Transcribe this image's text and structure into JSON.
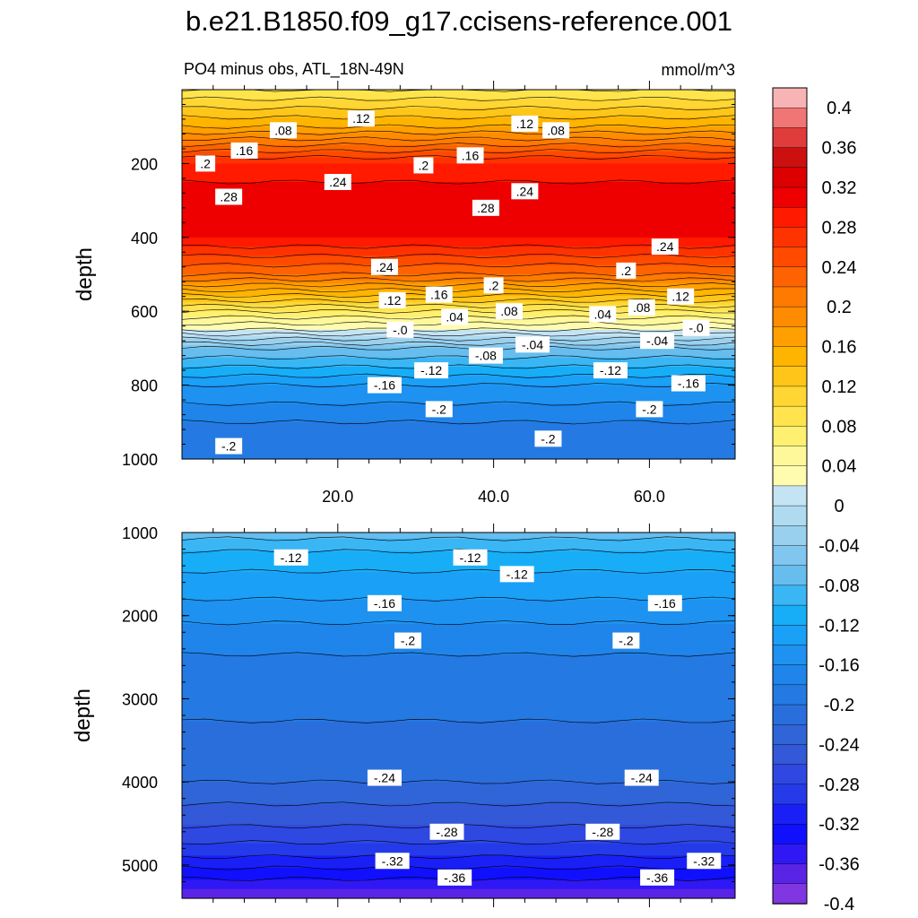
{
  "title": "b.e21.B1850.f09_g17.ccisens-reference.001",
  "chart_data": [
    {
      "type": "heatmap",
      "panel": "upper",
      "subtitle_left": "PO4 minus obs, ATL_18N-49N",
      "subtitle_right": "mmol/m^3",
      "ylabel": "depth",
      "ylim": [
        1000,
        0
      ],
      "xlim": [
        0,
        71
      ],
      "x_ticks": [
        "20.0",
        "40.0",
        "60.0"
      ],
      "x_tick_values": [
        20,
        40,
        60
      ],
      "y_ticks": [
        "200",
        "400",
        "600",
        "800",
        "1000"
      ],
      "y_tick_values": [
        200,
        400,
        600,
        800,
        1000
      ],
      "profile_depth": [
        0,
        100,
        200,
        300,
        400,
        500,
        600,
        650,
        700,
        800,
        900,
        1000
      ],
      "profile_value": [
        0.06,
        0.14,
        0.26,
        0.3,
        0.28,
        0.2,
        0.06,
        0.0,
        -0.08,
        -0.16,
        -0.2,
        -0.21
      ],
      "contour_labels": [
        {
          "text": ".08",
          "x": 13,
          "depth": 110
        },
        {
          "text": ".12",
          "x": 23,
          "depth": 78
        },
        {
          "text": ".08",
          "x": 48,
          "depth": 110
        },
        {
          "text": ".12",
          "x": 44,
          "depth": 92
        },
        {
          "text": ".16",
          "x": 8,
          "depth": 165
        },
        {
          "text": ".2",
          "x": 3,
          "depth": 200
        },
        {
          "text": ".2",
          "x": 31,
          "depth": 205
        },
        {
          "text": ".16",
          "x": 37,
          "depth": 178
        },
        {
          "text": ".24",
          "x": 20,
          "depth": 250
        },
        {
          "text": ".28",
          "x": 6,
          "depth": 290
        },
        {
          "text": ".24",
          "x": 44,
          "depth": 275
        },
        {
          "text": ".28",
          "x": 39,
          "depth": 320
        },
        {
          "text": ".24",
          "x": 26,
          "depth": 480
        },
        {
          "text": ".24",
          "x": 62,
          "depth": 425
        },
        {
          "text": ".2",
          "x": 57,
          "depth": 490
        },
        {
          "text": ".2",
          "x": 40,
          "depth": 530
        },
        {
          "text": ".16",
          "x": 33,
          "depth": 555
        },
        {
          "text": ".12",
          "x": 27,
          "depth": 570
        },
        {
          "text": ".12",
          "x": 64,
          "depth": 560
        },
        {
          "text": ".08",
          "x": 42,
          "depth": 600
        },
        {
          "text": ".08",
          "x": 59,
          "depth": 590
        },
        {
          "text": ".04",
          "x": 35,
          "depth": 615
        },
        {
          "text": ".04",
          "x": 54,
          "depth": 608
        },
        {
          "text": "-.0",
          "x": 28,
          "depth": 650
        },
        {
          "text": "-.0",
          "x": 66,
          "depth": 645
        },
        {
          "text": "-.04",
          "x": 45,
          "depth": 690
        },
        {
          "text": "-.04",
          "x": 61,
          "depth": 680
        },
        {
          "text": "-.08",
          "x": 39,
          "depth": 720
        },
        {
          "text": "-.12",
          "x": 32,
          "depth": 760
        },
        {
          "text": "-.12",
          "x": 55,
          "depth": 760
        },
        {
          "text": "-.16",
          "x": 26,
          "depth": 800
        },
        {
          "text": "-.16",
          "x": 65,
          "depth": 795
        },
        {
          "text": "-.2",
          "x": 33,
          "depth": 865
        },
        {
          "text": "-.2",
          "x": 60,
          "depth": 865
        },
        {
          "text": "-.2",
          "x": 6,
          "depth": 965
        },
        {
          "text": "-.2",
          "x": 47,
          "depth": 945
        }
      ]
    },
    {
      "type": "heatmap",
      "panel": "lower",
      "ylabel": "depth",
      "ylim": [
        5400,
        1000
      ],
      "xlim": [
        0,
        71
      ],
      "y_ticks": [
        "1000",
        "2000",
        "3000",
        "4000",
        "5000"
      ],
      "y_tick_values": [
        1000,
        2000,
        3000,
        4000,
        5000
      ],
      "profile_depth": [
        1000,
        1300,
        1800,
        2300,
        2800,
        3500,
        4000,
        4400,
        4600,
        4900,
        5100,
        5300,
        5400
      ],
      "profile_value": [
        -0.09,
        -0.13,
        -0.16,
        -0.195,
        -0.21,
        -0.225,
        -0.24,
        -0.27,
        -0.285,
        -0.32,
        -0.35,
        -0.38,
        -0.4
      ],
      "contour_labels": [
        {
          "text": "-.12",
          "x": 14,
          "depth": 1300
        },
        {
          "text": "-.12",
          "x": 37,
          "depth": 1300
        },
        {
          "text": "-.12",
          "x": 43,
          "depth": 1500
        },
        {
          "text": "-.16",
          "x": 26,
          "depth": 1850
        },
        {
          "text": "-.16",
          "x": 62,
          "depth": 1850
        },
        {
          "text": "-.2",
          "x": 29,
          "depth": 2300
        },
        {
          "text": "-.2",
          "x": 57,
          "depth": 2300
        },
        {
          "text": "-.24",
          "x": 26,
          "depth": 3950
        },
        {
          "text": "-.24",
          "x": 59,
          "depth": 3950
        },
        {
          "text": "-.28",
          "x": 34,
          "depth": 4600
        },
        {
          "text": "-.28",
          "x": 54,
          "depth": 4600
        },
        {
          "text": "-.32",
          "x": 27,
          "depth": 4950
        },
        {
          "text": "-.32",
          "x": 67,
          "depth": 4950
        },
        {
          "text": "-.36",
          "x": 35,
          "depth": 5150
        },
        {
          "text": "-.36",
          "x": 61,
          "depth": 5150
        }
      ]
    }
  ],
  "colorbar": {
    "labels": [
      "0.4",
      "0.36",
      "0.32",
      "0.28",
      "0.24",
      "0.2",
      "0.16",
      "0.12",
      "0.08",
      "0.04",
      "0",
      "-0.04",
      "-0.08",
      "-0.12",
      "-0.16",
      "-0.2",
      "-0.24",
      "-0.28",
      "-0.32",
      "-0.36",
      "-0.4"
    ],
    "values": [
      0.4,
      0.36,
      0.32,
      0.28,
      0.24,
      0.2,
      0.16,
      0.12,
      0.08,
      0.04,
      0,
      -0.04,
      -0.08,
      -0.12,
      -0.16,
      -0.2,
      -0.24,
      -0.28,
      -0.32,
      -0.36,
      -0.4
    ],
    "colors": [
      "#f8b4b4",
      "#f07575",
      "#e03c3c",
      "#cc1010",
      "#dd0000",
      "#ee0000",
      "#ff1a00",
      "#ff3300",
      "#ff4a00",
      "#ff6200",
      "#ff7a00",
      "#ff8c00",
      "#ffa000",
      "#ffb400",
      "#ffc619",
      "#ffd633",
      "#ffe44d",
      "#fff070",
      "#fff89a",
      "#fffcb0",
      "#c4e4f4",
      "#b0daf0",
      "#99d0ee",
      "#80c6ee",
      "#66bdee",
      "#3bb6f4",
      "#18aef7",
      "#1aa0f7",
      "#1e92f0",
      "#1f85ea",
      "#247ae2",
      "#2a6edc",
      "#3065d8",
      "#3358d8",
      "#2f48e2",
      "#253ae9",
      "#1a20f5",
      "#1010ff",
      "#3018f4",
      "#5a24e6",
      "#8036e0"
    ]
  }
}
